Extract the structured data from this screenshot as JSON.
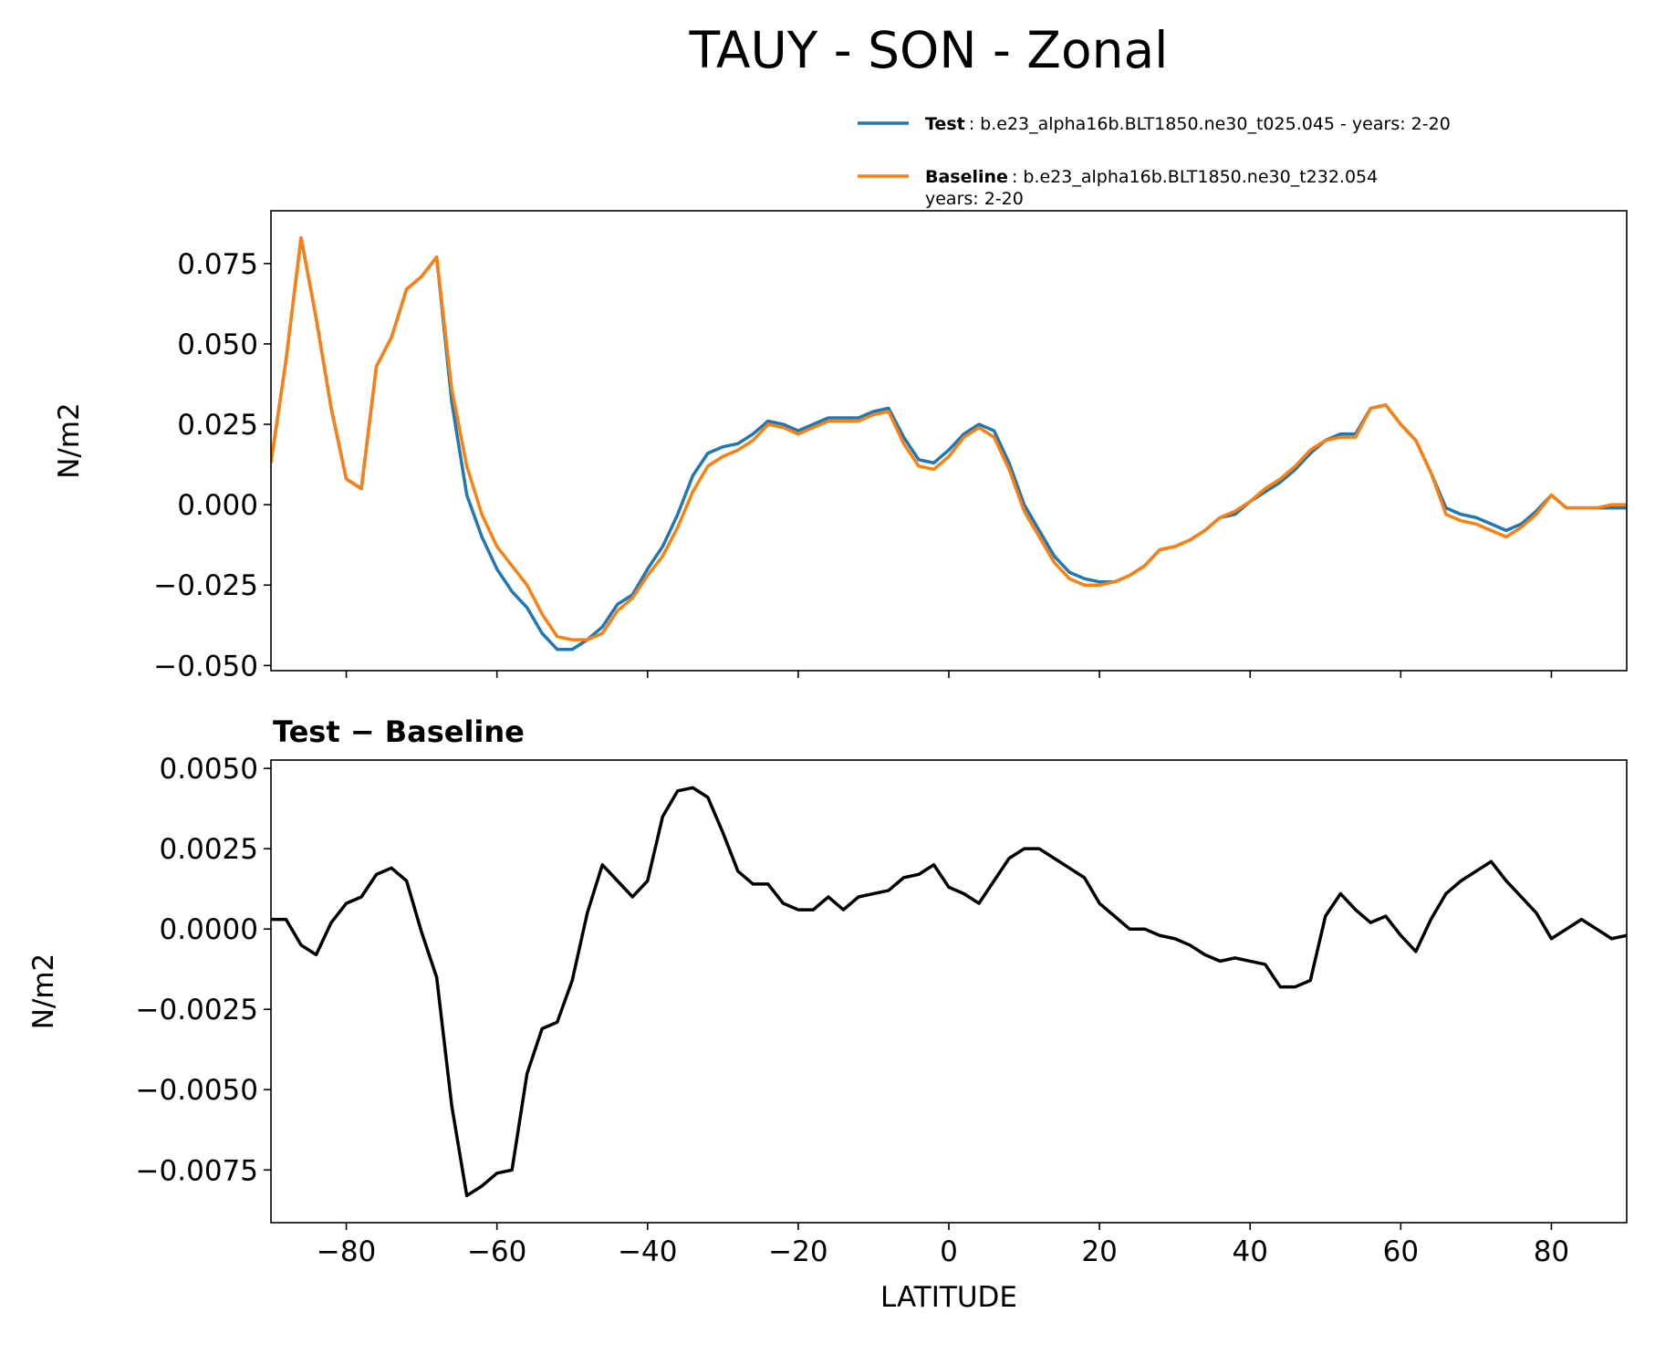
{
  "chart_data": [
    {
      "type": "line",
      "title": "TAUY - SON - Zonal",
      "ylabel": "N/m2",
      "tick_labels_x": false,
      "x": [
        -90,
        -88,
        -86,
        -84,
        -82,
        -80,
        -78,
        -76,
        -74,
        -72,
        -70,
        -68,
        -66,
        -64,
        -62,
        -60,
        -58,
        -56,
        -54,
        -52,
        -50,
        -48,
        -46,
        -44,
        -42,
        -40,
        -38,
        -36,
        -34,
        -32,
        -30,
        -28,
        -26,
        -24,
        -22,
        -20,
        -18,
        -16,
        -14,
        -12,
        -10,
        -8,
        -6,
        -4,
        -2,
        0,
        2,
        4,
        6,
        8,
        10,
        12,
        14,
        16,
        18,
        20,
        22,
        24,
        26,
        28,
        30,
        32,
        34,
        36,
        38,
        40,
        42,
        44,
        46,
        48,
        50,
        52,
        54,
        56,
        58,
        60,
        62,
        64,
        66,
        68,
        70,
        72,
        74,
        76,
        78,
        80,
        82,
        84,
        86,
        88,
        90
      ],
      "series": [
        {
          "name": "Test",
          "label": [
            ": b.e23_alpha16b.BLT1850.ne30_t025.045 - years: 2-20"
          ],
          "color": "#1f77b4",
          "values": [
            0.013,
            0.045,
            0.083,
            0.058,
            0.03,
            0.008,
            0.005,
            0.043,
            0.052,
            0.067,
            0.071,
            0.077,
            0.032,
            0.003,
            -0.01,
            -0.02,
            -0.027,
            -0.032,
            -0.04,
            -0.045,
            -0.045,
            -0.042,
            -0.038,
            -0.031,
            -0.028,
            -0.02,
            -0.013,
            -0.003,
            0.009,
            0.016,
            0.018,
            0.019,
            0.022,
            0.026,
            0.025,
            0.023,
            0.025,
            0.027,
            0.027,
            0.027,
            0.029,
            0.03,
            0.021,
            0.014,
            0.013,
            0.017,
            0.022,
            0.025,
            0.023,
            0.013,
            0.0,
            -0.008,
            -0.016,
            -0.021,
            -0.023,
            -0.024,
            -0.024,
            -0.022,
            -0.019,
            -0.014,
            -0.013,
            -0.011,
            -0.008,
            -0.004,
            -0.003,
            0.001,
            0.004,
            0.007,
            0.011,
            0.016,
            0.02,
            0.022,
            0.022,
            0.03,
            0.031,
            0.025,
            0.02,
            0.01,
            -0.001,
            -0.003,
            -0.004,
            -0.006,
            -0.008,
            -0.006,
            -0.002,
            0.003,
            -0.001,
            -0.001,
            -0.001,
            -0.001,
            -0.001
          ]
        },
        {
          "name": "Baseline",
          "label": [
            ": b.e23_alpha16b.BLT1850.ne30_t232.054",
            "years: 2-20"
          ],
          "color": "#ff7f0e",
          "values": [
            0.013,
            0.045,
            0.083,
            0.058,
            0.03,
            0.008,
            0.005,
            0.043,
            0.052,
            0.067,
            0.071,
            0.077,
            0.036,
            0.012,
            -0.003,
            -0.013,
            -0.019,
            -0.025,
            -0.034,
            -0.041,
            -0.042,
            -0.042,
            -0.04,
            -0.033,
            -0.029,
            -0.022,
            -0.016,
            -0.007,
            0.004,
            0.012,
            0.015,
            0.017,
            0.02,
            0.025,
            0.024,
            0.022,
            0.024,
            0.026,
            0.026,
            0.026,
            0.028,
            0.029,
            0.019,
            0.012,
            0.011,
            0.015,
            0.021,
            0.024,
            0.021,
            0.011,
            -0.002,
            -0.01,
            -0.018,
            -0.023,
            -0.025,
            -0.025,
            -0.024,
            -0.022,
            -0.019,
            -0.014,
            -0.013,
            -0.011,
            -0.008,
            -0.004,
            -0.002,
            0.001,
            0.005,
            0.008,
            0.012,
            0.017,
            0.02,
            0.021,
            0.021,
            0.03,
            0.031,
            0.025,
            0.02,
            0.01,
            -0.003,
            -0.005,
            -0.006,
            -0.008,
            -0.01,
            -0.007,
            -0.003,
            0.003,
            -0.001,
            -0.001,
            -0.001,
            0.0,
            0.0
          ]
        }
      ],
      "xlim": [
        -90,
        90
      ],
      "xticks": [
        -80,
        -60,
        -40,
        -20,
        0,
        20,
        40,
        60,
        80
      ],
      "ylim": [
        -0.0516,
        0.0914
      ],
      "yticks": [
        {
          "value": -0.05,
          "label": "−0.050"
        },
        {
          "value": -0.025,
          "label": "−0.025"
        },
        {
          "value": 0,
          "label": "0.000"
        },
        {
          "value": 0.025,
          "label": "0.025"
        },
        {
          "value": 0.05,
          "label": "0.050"
        },
        0.075
      ]
    },
    {
      "type": "line",
      "subtitle": "Test − Baseline",
      "ylabel": "N/m2",
      "xlabel": "LATITUDE",
      "tick_labels_x": true,
      "color": "#000000",
      "x": [
        -90,
        -88,
        -86,
        -84,
        -82,
        -80,
        -78,
        -76,
        -74,
        -72,
        -70,
        -68,
        -66,
        -64,
        -62,
        -60,
        -58,
        -56,
        -54,
        -52,
        -50,
        -48,
        -46,
        -44,
        -42,
        -40,
        -38,
        -36,
        -34,
        -32,
        -30,
        -28,
        -26,
        -24,
        -22,
        -20,
        -18,
        -16,
        -14,
        -12,
        -10,
        -8,
        -6,
        -4,
        -2,
        0,
        2,
        4,
        6,
        8,
        10,
        12,
        14,
        16,
        18,
        20,
        22,
        24,
        26,
        28,
        30,
        32,
        34,
        36,
        38,
        40,
        42,
        44,
        46,
        48,
        50,
        52,
        54,
        56,
        58,
        60,
        62,
        64,
        66,
        68,
        70,
        72,
        74,
        76,
        78,
        80,
        82,
        84,
        86,
        88,
        90
      ],
      "values": [
        0.0003,
        0.0003,
        -0.0005,
        -0.0008,
        0.0002,
        0.0008,
        0.001,
        0.0017,
        0.0019,
        0.0015,
        -0.0001,
        -0.0015,
        -0.0055,
        -0.0083,
        -0.008,
        -0.0076,
        -0.0075,
        -0.0045,
        -0.0031,
        -0.0029,
        -0.0016,
        0.0005,
        0.002,
        0.0015,
        0.001,
        0.0015,
        0.0035,
        0.0043,
        0.0044,
        0.0041,
        0.003,
        0.0018,
        0.0014,
        0.0014,
        0.0008,
        0.0006,
        0.0006,
        0.001,
        0.0006,
        0.001,
        0.0011,
        0.0012,
        0.0016,
        0.0017,
        0.002,
        0.0013,
        0.0011,
        0.0008,
        0.0015,
        0.0022,
        0.0025,
        0.0025,
        0.0022,
        0.0019,
        0.0016,
        0.0008,
        0.0004,
        0.0,
        0.0,
        -0.0002,
        -0.0003,
        -0.0005,
        -0.0008,
        -0.001,
        -0.0009,
        -0.001,
        -0.0011,
        -0.0018,
        -0.0018,
        -0.0016,
        0.0004,
        0.0011,
        0.0006,
        0.0002,
        0.0004,
        -0.0002,
        -0.0007,
        0.0003,
        0.0011,
        0.0015,
        0.0018,
        0.0021,
        0.0015,
        0.001,
        0.0005,
        -0.0003,
        0.0,
        0.0003,
        0.0,
        -0.0003,
        -0.0002
      ],
      "xlim": [
        -90,
        90
      ],
      "xticks": [
        {
          "value": -80,
          "label": "−80"
        },
        {
          "value": -60,
          "label": "−60"
        },
        {
          "value": -40,
          "label": "−40"
        },
        {
          "value": -20,
          "label": "−20"
        },
        0,
        20,
        40,
        60,
        80
      ],
      "ylim": [
        -0.00914,
        0.00526
      ],
      "yticks": [
        {
          "value": -0.0075,
          "label": "−0.0075"
        },
        {
          "value": -0.005,
          "label": "−0.0050"
        },
        {
          "value": -0.0025,
          "label": "−0.0025"
        },
        {
          "value": 0,
          "label": "0.0000"
        },
        {
          "value": 0.0025,
          "label": "0.0025"
        },
        {
          "value": 0.005,
          "label": "0.0050"
        }
      ]
    }
  ]
}
